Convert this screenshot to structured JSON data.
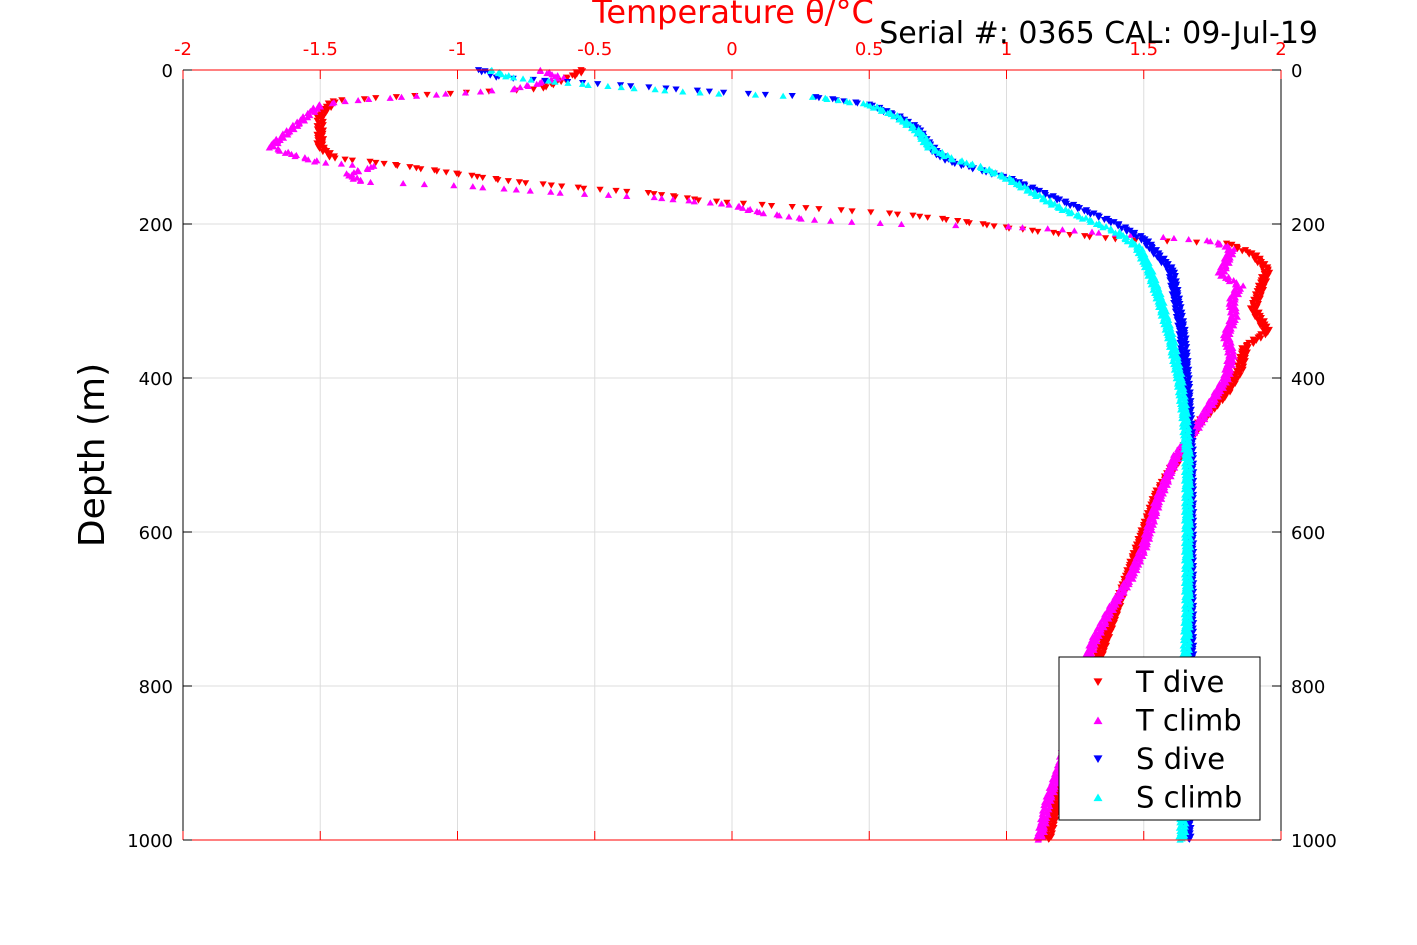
{
  "serial_text": "Serial #: 0365  CAL: 09-Jul-19",
  "chart_data": {
    "type": "scatter",
    "title": "Temperature θ/°C",
    "xlabel": "Temperature θ/°C",
    "ylabel": "Depth (m)",
    "xlim": [
      -2,
      2
    ],
    "ylim": [
      0,
      1000
    ],
    "y_reversed": true,
    "x_ticks": [
      -2,
      -1.5,
      -1,
      -0.5,
      0,
      0.5,
      1,
      1.5,
      2
    ],
    "x_tick_labels": [
      "-2",
      "-1.5",
      "-1",
      "-0.5",
      "0",
      "0.5",
      "1",
      "1.5",
      "2"
    ],
    "y_ticks": [
      0,
      200,
      400,
      600,
      800,
      1000
    ],
    "y_tick_labels": [
      "0",
      "200",
      "400",
      "600",
      "800",
      "1000"
    ],
    "grid": true,
    "legend_position": "bottom-right",
    "colors": {
      "axis_top": "#ff0000",
      "grid": "#dddddd"
    },
    "series": [
      {
        "name": "T dive",
        "marker": "triangle-down",
        "color": "#ff0000",
        "profile": [
          [
            -0.55,
            0
          ],
          [
            -0.56,
            5
          ],
          [
            -0.7,
            25
          ],
          [
            -1.0,
            30
          ],
          [
            -1.45,
            40
          ],
          [
            -1.5,
            60
          ],
          [
            -1.5,
            85
          ],
          [
            -1.5,
            100
          ],
          [
            -1.45,
            115
          ],
          [
            -1.3,
            120
          ],
          [
            -1.0,
            135
          ],
          [
            -0.8,
            145
          ],
          [
            -0.5,
            155
          ],
          [
            -0.3,
            160
          ],
          [
            -0.1,
            170
          ],
          [
            0.1,
            175
          ],
          [
            0.3,
            180
          ],
          [
            0.6,
            187
          ],
          [
            0.8,
            195
          ],
          [
            1.0,
            205
          ],
          [
            1.2,
            213
          ],
          [
            1.4,
            220
          ],
          [
            1.6,
            223
          ],
          [
            1.8,
            225
          ],
          [
            1.9,
            240
          ],
          [
            1.95,
            260
          ],
          [
            1.92,
            290
          ],
          [
            1.9,
            310
          ],
          [
            1.95,
            340
          ],
          [
            1.87,
            360
          ],
          [
            1.85,
            390
          ],
          [
            1.8,
            420
          ],
          [
            1.7,
            460
          ],
          [
            1.6,
            520
          ],
          [
            1.55,
            550
          ],
          [
            1.5,
            600
          ],
          [
            1.45,
            650
          ],
          [
            1.4,
            700
          ],
          [
            1.35,
            750
          ],
          [
            1.3,
            800
          ],
          [
            1.22,
            900
          ],
          [
            1.15,
            1000
          ]
        ]
      },
      {
        "name": "T climb",
        "marker": "triangle-up",
        "color": "#ff00ff",
        "profile": [
          [
            -0.7,
            0
          ],
          [
            -0.62,
            10
          ],
          [
            -0.8,
            25
          ],
          [
            -1.2,
            35
          ],
          [
            -1.4,
            40
          ],
          [
            -1.5,
            45
          ],
          [
            -1.55,
            60
          ],
          [
            -1.6,
            75
          ],
          [
            -1.65,
            90
          ],
          [
            -1.68,
            100
          ],
          [
            -1.6,
            110
          ],
          [
            -1.5,
            120
          ],
          [
            -1.3,
            125
          ],
          [
            -1.4,
            135
          ],
          [
            -1.35,
            145
          ],
          [
            -1.0,
            150
          ],
          [
            -0.6,
            160
          ],
          [
            -0.3,
            165
          ],
          [
            0.0,
            175
          ],
          [
            0.1,
            185
          ],
          [
            0.3,
            195
          ],
          [
            0.6,
            200
          ],
          [
            1.0,
            203
          ],
          [
            1.2,
            207
          ],
          [
            1.4,
            213
          ],
          [
            1.6,
            218
          ],
          [
            1.75,
            222
          ],
          [
            1.82,
            232
          ],
          [
            1.8,
            250
          ],
          [
            1.78,
            265
          ],
          [
            1.85,
            280
          ],
          [
            1.82,
            300
          ],
          [
            1.83,
            320
          ],
          [
            1.8,
            345
          ],
          [
            1.82,
            370
          ],
          [
            1.8,
            400
          ],
          [
            1.75,
            430
          ],
          [
            1.7,
            460
          ],
          [
            1.62,
            500
          ],
          [
            1.55,
            560
          ],
          [
            1.5,
            620
          ],
          [
            1.45,
            660
          ],
          [
            1.38,
            700
          ],
          [
            1.32,
            740
          ],
          [
            1.3,
            760
          ],
          [
            1.25,
            820
          ],
          [
            1.2,
            900
          ],
          [
            1.15,
            950
          ],
          [
            1.12,
            1000
          ]
        ]
      },
      {
        "name": "S dive",
        "marker": "triangle-down",
        "color": "#0000ff",
        "profile": [
          [
            -0.92,
            0
          ],
          [
            -0.85,
            10
          ],
          [
            -0.4,
            20
          ],
          [
            0.0,
            30
          ],
          [
            0.3,
            35
          ],
          [
            0.5,
            45
          ],
          [
            0.6,
            60
          ],
          [
            0.67,
            75
          ],
          [
            0.7,
            90
          ],
          [
            0.75,
            110
          ],
          [
            0.8,
            120
          ],
          [
            0.9,
            130
          ],
          [
            1.0,
            140
          ],
          [
            1.1,
            155
          ],
          [
            1.2,
            170
          ],
          [
            1.3,
            185
          ],
          [
            1.4,
            200
          ],
          [
            1.5,
            220
          ],
          [
            1.55,
            240
          ],
          [
            1.6,
            260
          ],
          [
            1.62,
            300
          ],
          [
            1.64,
            340
          ],
          [
            1.65,
            380
          ],
          [
            1.66,
            430
          ],
          [
            1.67,
            500
          ],
          [
            1.67,
            600
          ],
          [
            1.67,
            700
          ],
          [
            1.67,
            800
          ],
          [
            1.66,
            900
          ],
          [
            1.66,
            1000
          ]
        ]
      },
      {
        "name": "S climb",
        "marker": "triangle-up",
        "color": "#00ffff",
        "profile": [
          [
            -0.88,
            0
          ],
          [
            -0.8,
            10
          ],
          [
            -0.5,
            20
          ],
          [
            -0.1,
            30
          ],
          [
            0.3,
            35
          ],
          [
            0.5,
            45
          ],
          [
            0.6,
            60
          ],
          [
            0.68,
            80
          ],
          [
            0.72,
            100
          ],
          [
            0.8,
            115
          ],
          [
            0.9,
            125
          ],
          [
            1.0,
            140
          ],
          [
            1.1,
            160
          ],
          [
            1.2,
            180
          ],
          [
            1.3,
            195
          ],
          [
            1.4,
            210
          ],
          [
            1.48,
            230
          ],
          [
            1.52,
            260
          ],
          [
            1.56,
            300
          ],
          [
            1.6,
            350
          ],
          [
            1.63,
            400
          ],
          [
            1.65,
            450
          ],
          [
            1.66,
            500
          ],
          [
            1.66,
            600
          ],
          [
            1.66,
            700
          ],
          [
            1.65,
            800
          ],
          [
            1.65,
            900
          ],
          [
            1.64,
            1000
          ]
        ]
      }
    ]
  }
}
